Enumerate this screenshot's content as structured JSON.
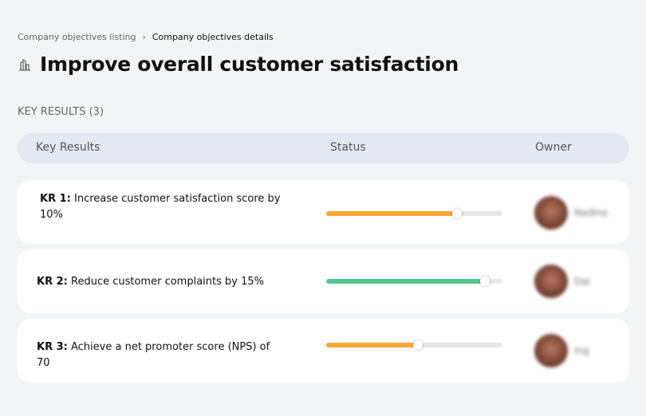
{
  "breadcrumb": {
    "items": [
      "Company objectives listing",
      "Company objectives details"
    ],
    "separator": "›"
  },
  "page": {
    "icon": "buildings-icon",
    "title": "Improve overall customer satisfaction"
  },
  "section": {
    "label": "KEY RESULTS (3)"
  },
  "table": {
    "headers": [
      "Key Results",
      "Status",
      "Owner"
    ],
    "rows": [
      {
        "id": "KR 1:",
        "text": "Increase customer satisfaction score by 10%",
        "progress": 0.74,
        "color": "#fba634",
        "owner": "Nadine"
      },
      {
        "id": "KR 2:",
        "text": "Reduce customer complaints by 15%",
        "progress": 0.9,
        "color": "#55c68f",
        "owner": "Dai"
      },
      {
        "id": "KR 3:",
        "text": "Achieve a net promoter score (NPS) of 70",
        "progress": 0.52,
        "color": "#fba634",
        "owner": "Ing"
      }
    ]
  }
}
